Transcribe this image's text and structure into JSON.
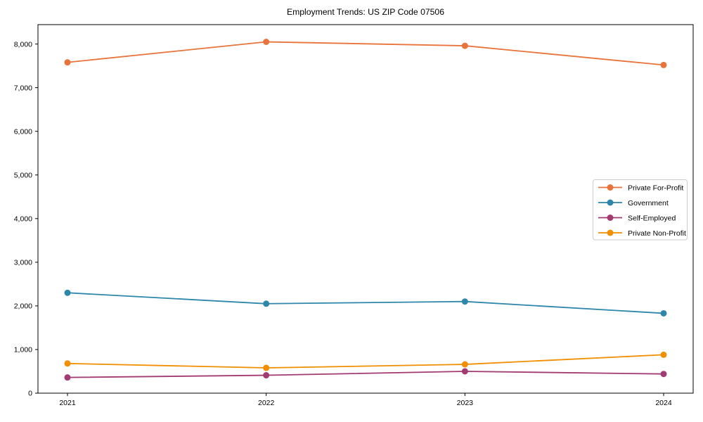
{
  "chart_data": {
    "type": "line",
    "title": "Employment Trends: US ZIP Code 07506",
    "xlabel": "",
    "ylabel": "",
    "x": [
      2021,
      2022,
      2023,
      2024
    ],
    "x_tick_labels": [
      "2021",
      "2022",
      "2023",
      "2024"
    ],
    "y_ticks": [
      0,
      1000,
      2000,
      3000,
      4000,
      5000,
      6000,
      7000,
      8000
    ],
    "y_tick_labels": [
      "0",
      "1,000",
      "2,000",
      "3,000",
      "4,000",
      "5,000",
      "6,000",
      "7,000",
      "8,000"
    ],
    "ylim": [
      0,
      8450
    ],
    "grid": false,
    "marker": "circle",
    "legend_position": "center-right",
    "frame_color": "#000000",
    "background_color": "#ffffff",
    "legend_border_color": "#cccccc",
    "series": [
      {
        "name": "Private For-Profit",
        "color": "#E8743B",
        "values": [
          7580,
          8050,
          7960,
          7520
        ]
      },
      {
        "name": "Government",
        "color": "#2E86AB",
        "values": [
          2300,
          2050,
          2100,
          1830
        ]
      },
      {
        "name": "Self-Employed",
        "color": "#A23B72",
        "values": [
          360,
          410,
          500,
          440
        ]
      },
      {
        "name": "Private Non-Profit",
        "color": "#F18F01",
        "values": [
          680,
          580,
          660,
          880
        ]
      }
    ]
  }
}
